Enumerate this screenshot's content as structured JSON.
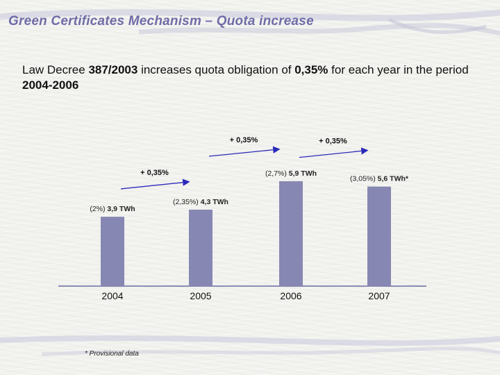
{
  "slide": {
    "title": "Green Certificates Mechanism – Quota increase",
    "subtitle": {
      "t1": "Law Decree ",
      "b1": "387/2003",
      "t2": " increases quota obligation of ",
      "b2": "0,35%",
      "t3": " for each year in the period ",
      "b3": "2004-2006"
    },
    "footnote": "* Provisional data"
  },
  "colors": {
    "bar": "#8787b3",
    "arrow": "#2a2ab8",
    "title": "#6f6ca8",
    "axis": "#6a6aa0"
  },
  "chart_data": {
    "type": "bar",
    "categories": [
      "2004",
      "2005",
      "2006",
      "2007"
    ],
    "values": [
      3.9,
      4.3,
      5.9,
      5.6
    ],
    "data_labels": [
      {
        "pct": "(2%) ",
        "val": "3,9 TWh"
      },
      {
        "pct": "(2,35%) ",
        "val": "4,3 TWh"
      },
      {
        "pct": "(2,7%) ",
        "val": "5,9 TWh"
      },
      {
        "pct": "(3,05%) ",
        "val": "5,6 TWh*"
      }
    ],
    "increments": [
      "+ 0,35%",
      "+ 0,35%",
      "+ 0,35%"
    ],
    "ylim": [
      0,
      7.5
    ],
    "grid": false,
    "legend": "none",
    "xlabel": "",
    "ylabel": ""
  }
}
